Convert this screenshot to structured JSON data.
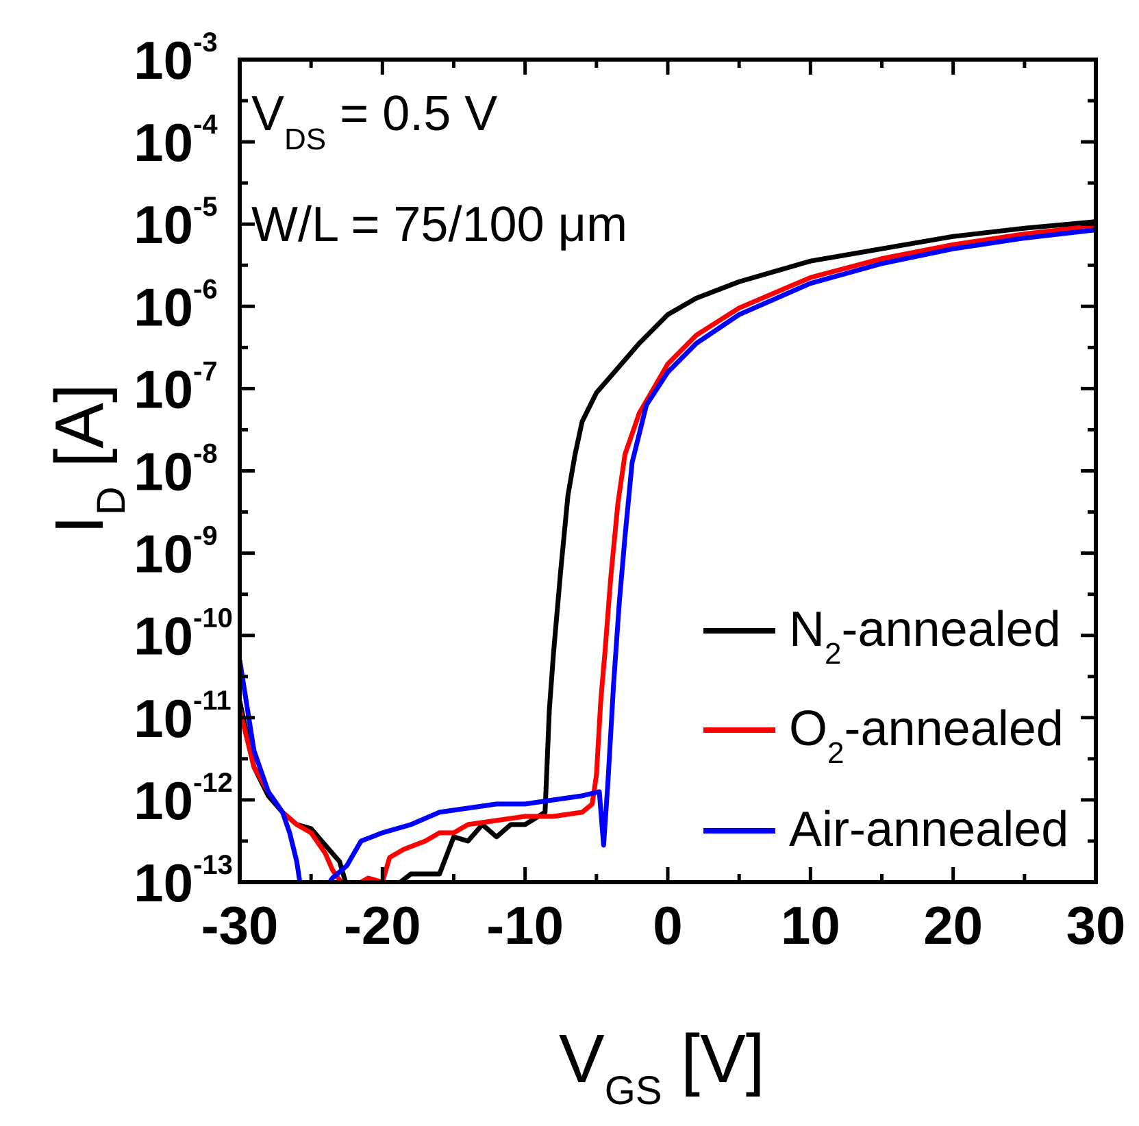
{
  "chart_data": {
    "type": "line",
    "xlabel": {
      "main": "V",
      "sub": "GS",
      "unit": " [V]"
    },
    "ylabel": {
      "main": "I",
      "sub": "D",
      "unit": " [A]"
    },
    "xlim": [
      -30,
      30
    ],
    "ylim_log10": [
      -13,
      -3
    ],
    "y_scale": "log",
    "x_ticks": [
      {
        "value": -30,
        "label": "-30"
      },
      {
        "value": -20,
        "label": "-20"
      },
      {
        "value": -10,
        "label": "-10"
      },
      {
        "value": 0,
        "label": "0"
      },
      {
        "value": 10,
        "label": "10"
      },
      {
        "value": 20,
        "label": "20"
      },
      {
        "value": 30,
        "label": "30"
      }
    ],
    "y_ticks": [
      {
        "exp": -3,
        "base": "10",
        "sup": "-3"
      },
      {
        "exp": -4,
        "base": "10",
        "sup": "-4"
      },
      {
        "exp": -5,
        "base": "10",
        "sup": "-5"
      },
      {
        "exp": -6,
        "base": "10",
        "sup": "-6"
      },
      {
        "exp": -7,
        "base": "10",
        "sup": "-7"
      },
      {
        "exp": -8,
        "base": "10",
        "sup": "-8"
      },
      {
        "exp": -9,
        "base": "10",
        "sup": "-9"
      },
      {
        "exp": -10,
        "base": "10",
        "sup": "-10"
      },
      {
        "exp": -11,
        "base": "10",
        "sup": "-11"
      },
      {
        "exp": -12,
        "base": "10",
        "sup": "-12"
      },
      {
        "exp": -13,
        "base": "10",
        "sup": "-13"
      }
    ],
    "annotations": {
      "line1": {
        "main": "V",
        "sub": "DS",
        "rest": " = 0.5 V"
      },
      "line2": "W/L = 75/100 μm"
    },
    "legend_position": "lower-right",
    "series": [
      {
        "name_main": "N",
        "name_sub": "2",
        "name_rest": "-annealed",
        "color": "#000000",
        "points": [
          [
            -30,
            -10.8
          ],
          [
            -29,
            -11.6
          ],
          [
            -28,
            -11.95
          ],
          [
            -27,
            -12.15
          ],
          [
            -26,
            -12.3
          ],
          [
            -25,
            -12.35
          ],
          [
            -24,
            -12.55
          ],
          [
            -23,
            -12.75
          ],
          [
            -22.5,
            -13.05
          ],
          [
            -21,
            -13.1
          ],
          [
            -19.5,
            -13.1
          ],
          [
            -18,
            -12.9
          ],
          [
            -17,
            -12.9
          ],
          [
            -16,
            -12.9
          ],
          [
            -15,
            -12.45
          ],
          [
            -14,
            -12.5
          ],
          [
            -13,
            -12.3
          ],
          [
            -12,
            -12.45
          ],
          [
            -11,
            -12.3
          ],
          [
            -10,
            -12.3
          ],
          [
            -8.6,
            -12.15
          ],
          [
            -8.3,
            -10.9
          ],
          [
            -8,
            -10.2
          ],
          [
            -7.5,
            -9.2
          ],
          [
            -7,
            -8.3
          ],
          [
            -6.5,
            -7.8
          ],
          [
            -6,
            -7.4
          ],
          [
            -5,
            -7.05
          ],
          [
            -4,
            -6.85
          ],
          [
            -2,
            -6.45
          ],
          [
            0,
            -6.1
          ],
          [
            2,
            -5.9
          ],
          [
            5,
            -5.7
          ],
          [
            10,
            -5.45
          ],
          [
            15,
            -5.3
          ],
          [
            20,
            -5.15
          ],
          [
            25,
            -5.05
          ],
          [
            30,
            -4.97
          ]
        ]
      },
      {
        "name_main": "O",
        "name_sub": "2",
        "name_rest": "-annealed",
        "color": "#ff0000",
        "points": [
          [
            -30,
            -10.9
          ],
          [
            -29,
            -11.6
          ],
          [
            -28,
            -11.9
          ],
          [
            -27,
            -12.15
          ],
          [
            -26,
            -12.3
          ],
          [
            -25,
            -12.4
          ],
          [
            -24,
            -12.65
          ],
          [
            -23.5,
            -12.85
          ],
          [
            -22.5,
            -13.1
          ],
          [
            -21,
            -12.95
          ],
          [
            -20,
            -13
          ],
          [
            -19.5,
            -12.7
          ],
          [
            -18.5,
            -12.6
          ],
          [
            -17,
            -12.5
          ],
          [
            -16,
            -12.4
          ],
          [
            -15,
            -12.4
          ],
          [
            -14,
            -12.3
          ],
          [
            -12,
            -12.25
          ],
          [
            -10,
            -12.2
          ],
          [
            -8,
            -12.2
          ],
          [
            -6,
            -12.15
          ],
          [
            -5.3,
            -12.05
          ],
          [
            -5,
            -11.7
          ],
          [
            -4.7,
            -10.8
          ],
          [
            -4.4,
            -10.2
          ],
          [
            -4,
            -9.3
          ],
          [
            -3.5,
            -8.4
          ],
          [
            -3,
            -7.8
          ],
          [
            -2,
            -7.3
          ],
          [
            -1,
            -7
          ],
          [
            0,
            -6.7
          ],
          [
            2,
            -6.35
          ],
          [
            5,
            -6.02
          ],
          [
            10,
            -5.65
          ],
          [
            15,
            -5.42
          ],
          [
            20,
            -5.25
          ],
          [
            25,
            -5.12
          ],
          [
            30,
            -5.02
          ]
        ]
      },
      {
        "name_main": "Air-annealed",
        "name_sub": "",
        "name_rest": "",
        "color": "#0000ff",
        "points": [
          [
            -30,
            -10.3
          ],
          [
            -29,
            -11.4
          ],
          [
            -28,
            -11.9
          ],
          [
            -27,
            -12.15
          ],
          [
            -26.5,
            -12.4
          ],
          [
            -26,
            -12.75
          ],
          [
            -25.7,
            -13.1
          ],
          [
            -25.3,
            -13.25
          ],
          [
            -24.5,
            -13.2
          ],
          [
            -23.5,
            -12.95
          ],
          [
            -22.5,
            -12.8
          ],
          [
            -21.5,
            -12.5
          ],
          [
            -20,
            -12.4
          ],
          [
            -18,
            -12.3
          ],
          [
            -16,
            -12.15
          ],
          [
            -14,
            -12.1
          ],
          [
            -12,
            -12.05
          ],
          [
            -10,
            -12.05
          ],
          [
            -8,
            -12
          ],
          [
            -6,
            -11.95
          ],
          [
            -4.8,
            -11.9
          ],
          [
            -4.5,
            -12.55
          ],
          [
            -4.2,
            -11.8
          ],
          [
            -3.8,
            -10.6
          ],
          [
            -3.4,
            -9.6
          ],
          [
            -3,
            -8.8
          ],
          [
            -2.5,
            -7.9
          ],
          [
            -1.5,
            -7.2
          ],
          [
            0,
            -6.8
          ],
          [
            2,
            -6.45
          ],
          [
            5,
            -6.1
          ],
          [
            10,
            -5.72
          ],
          [
            15,
            -5.48
          ],
          [
            20,
            -5.3
          ],
          [
            25,
            -5.17
          ],
          [
            30,
            -5.07
          ]
        ]
      }
    ]
  }
}
